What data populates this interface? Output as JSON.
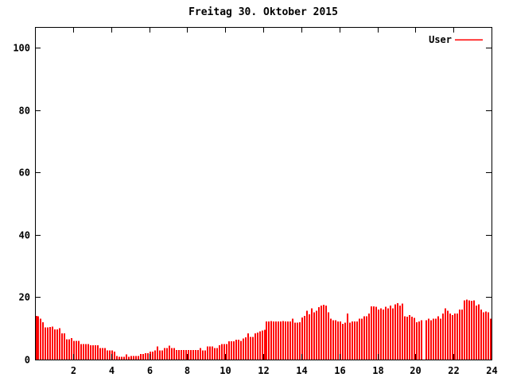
{
  "chart_data": {
    "type": "bar",
    "title": "Freitag 30. Oktober 2015",
    "xlabel": "",
    "ylabel": "",
    "xlim": [
      0,
      24
    ],
    "ylim": [
      0,
      106.6
    ],
    "xticks": [
      2,
      4,
      6,
      8,
      10,
      12,
      14,
      16,
      18,
      20,
      22,
      24
    ],
    "yticks": [
      0,
      20,
      40,
      60,
      80,
      100
    ],
    "grid": false,
    "legend_position": "top-right",
    "legend": [
      {
        "label": "User",
        "color": "#ff0000"
      }
    ],
    "bar_color": "#ff0000",
    "x_start_hour": 0,
    "x_interval_hours": 0.125,
    "points": 192,
    "values": [
      14.0,
      13.9,
      13.1,
      12.0,
      10.3,
      10.3,
      10.4,
      10.5,
      9.7,
      9.7,
      10.1,
      8.4,
      8.4,
      6.5,
      6.5,
      6.9,
      6.0,
      6.0,
      6.0,
      5.0,
      5.0,
      5.0,
      5.0,
      4.6,
      4.6,
      4.6,
      4.6,
      3.7,
      3.7,
      3.7,
      2.9,
      2.9,
      2.9,
      2.6,
      1.2,
      0.9,
      0.9,
      0.9,
      1.6,
      0.9,
      1.2,
      1.2,
      1.2,
      1.2,
      1.8,
      1.8,
      2.0,
      2.0,
      2.5,
      2.5,
      2.9,
      4.2,
      2.9,
      2.9,
      3.7,
      3.7,
      4.4,
      3.7,
      3.7,
      3.1,
      3.1,
      3.1,
      3.1,
      3.1,
      3.1,
      3.1,
      3.1,
      3.1,
      3.1,
      3.7,
      2.9,
      2.9,
      4.2,
      4.2,
      4.2,
      3.7,
      3.7,
      4.6,
      5.0,
      5.0,
      5.0,
      5.8,
      5.8,
      5.8,
      6.3,
      6.3,
      6.0,
      6.7,
      7.1,
      8.4,
      7.3,
      7.3,
      8.4,
      8.6,
      9.0,
      9.3,
      9.5,
      12.2,
      12.2,
      12.4,
      12.2,
      12.2,
      12.2,
      12.2,
      12.4,
      12.2,
      12.2,
      12.2,
      13.1,
      11.8,
      11.8,
      12.0,
      13.5,
      14.0,
      15.6,
      14.5,
      16.4,
      15.2,
      15.6,
      16.8,
      17.3,
      17.5,
      17.3,
      15.2,
      13.1,
      12.6,
      12.6,
      12.2,
      12.2,
      11.4,
      11.8,
      14.7,
      11.8,
      12.2,
      12.2,
      12.2,
      13.1,
      13.1,
      13.9,
      13.9,
      14.7,
      17.0,
      17.0,
      16.9,
      16.0,
      16.4,
      16.0,
      16.9,
      16.4,
      17.3,
      16.4,
      17.7,
      18.1,
      17.3,
      17.9,
      13.9,
      13.8,
      14.3,
      13.8,
      13.3,
      12.0,
      12.2,
      12.6,
      0,
      12.6,
      13.1,
      12.6,
      13.1,
      13.1,
      13.9,
      13.1,
      14.7,
      16.4,
      15.6,
      14.7,
      14.3,
      14.7,
      14.7,
      16.0,
      16.0,
      19.0,
      19.2,
      19.0,
      18.8,
      19.0,
      17.3,
      17.7,
      16.0,
      15.2,
      15.4,
      15.2,
      13.1
    ]
  },
  "colors": {
    "background": "#ffffff",
    "axis": "#000000",
    "text": "#000000",
    "bar": "#ff0000"
  }
}
